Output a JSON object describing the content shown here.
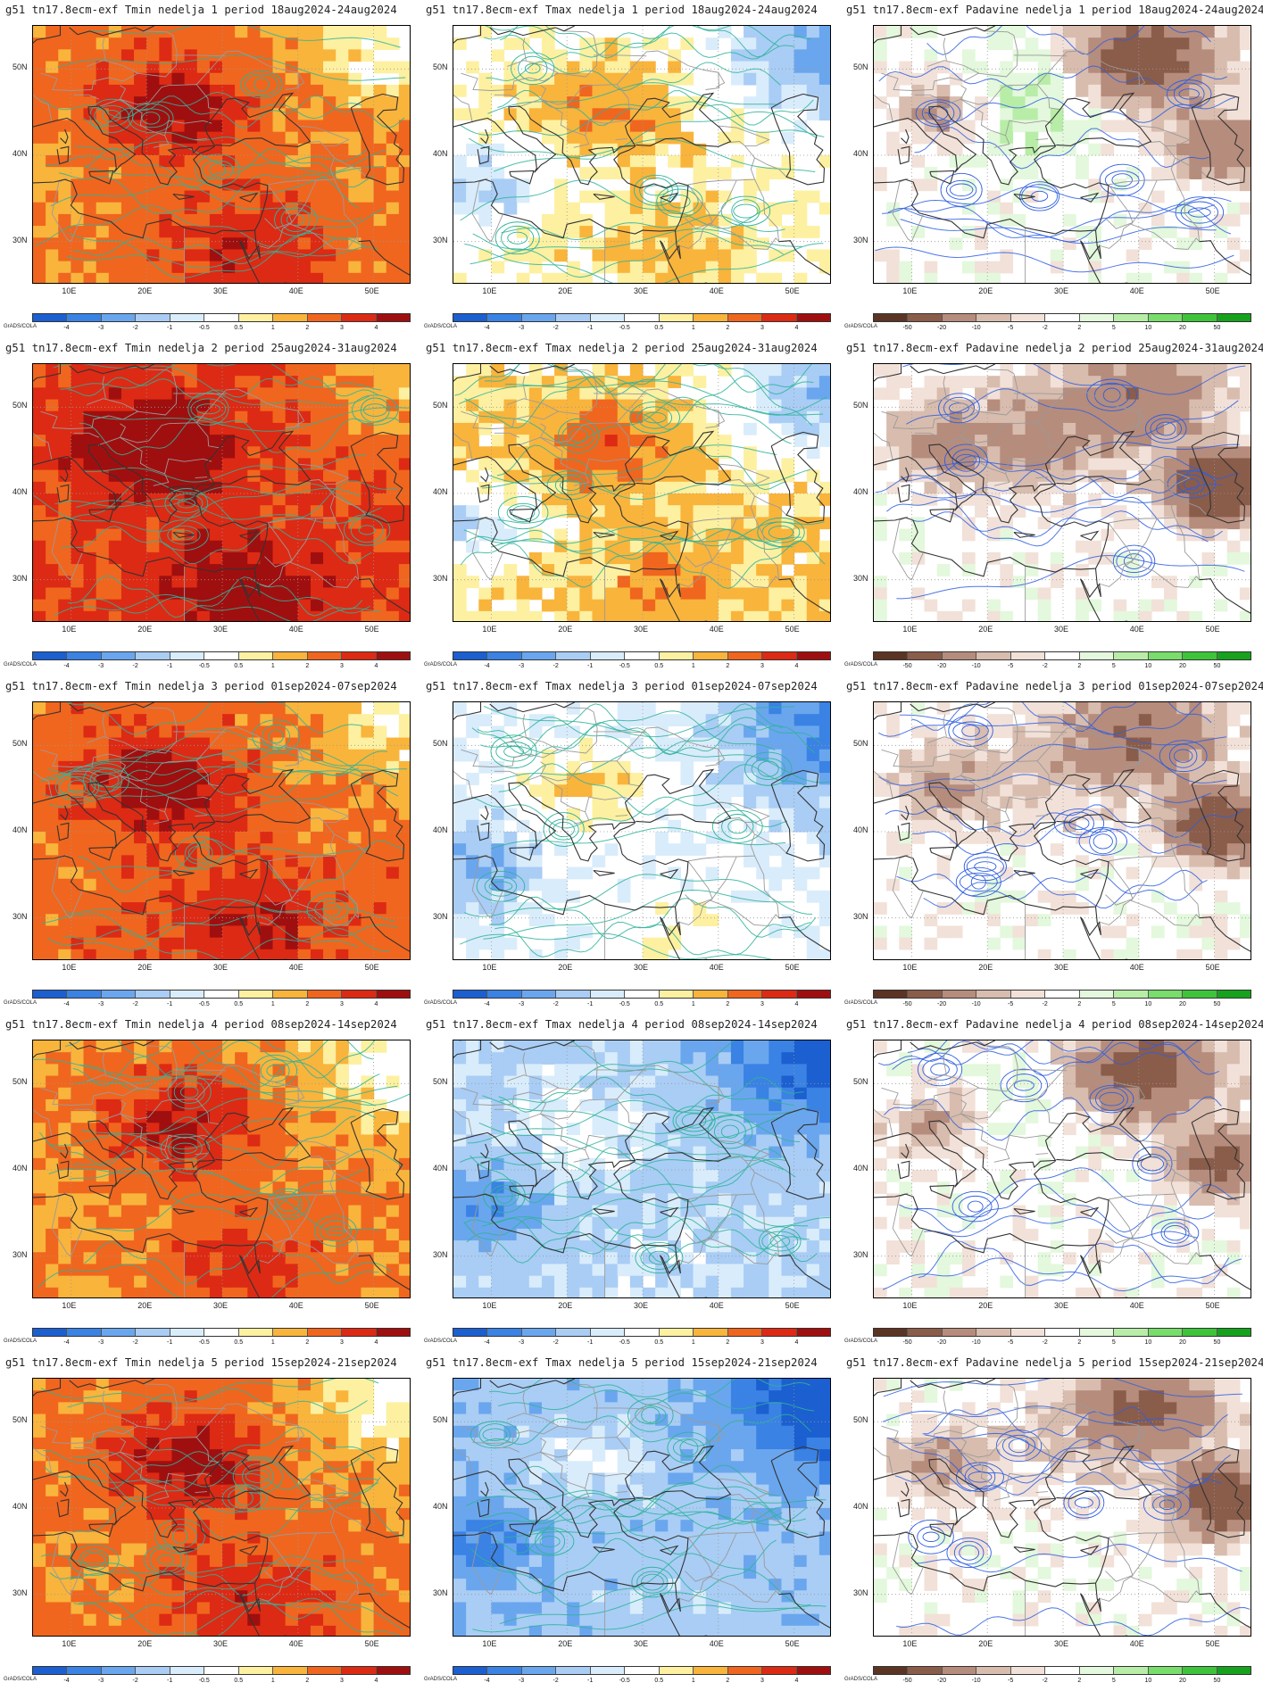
{
  "colorbars": {
    "temp": {
      "ticks": [
        "-4",
        "-3",
        "-2",
        "-1",
        "-0.5",
        "0.5",
        "1",
        "2",
        "3",
        "4"
      ],
      "colors": [
        "#1b5fd0",
        "#3a82e4",
        "#6aa6ee",
        "#a9cdf5",
        "#d9ecfb",
        "#ffffff",
        "#fdf0a0",
        "#f9b43c",
        "#f0661e",
        "#dd2a14",
        "#a00f0f"
      ]
    },
    "precip": {
      "ticks": [
        "-50",
        "-20",
        "-10",
        "-5",
        "-2",
        "2",
        "5",
        "10",
        "20",
        "50"
      ],
      "colors": [
        "#5b3424",
        "#8a5c4a",
        "#b68c7c",
        "#d8bcae",
        "#f2e1d8",
        "#ffffff",
        "#e3f8dc",
        "#b8eda8",
        "#78dd6a",
        "#3ec43a",
        "#16a21c"
      ]
    }
  },
  "axes": {
    "lat_labels": [
      "50N",
      "40N",
      "30N"
    ],
    "lon_labels": [
      "10E",
      "20E",
      "30E",
      "40E",
      "50E"
    ]
  },
  "credit": "GrADS/COLA",
  "panels": [
    {
      "title": "g51 tn17.8ecm-exf Tmin nedelja 1 period 18aug2024-24aug2024",
      "kind": "temp",
      "base": 0.55
    },
    {
      "title": "g51 tn17.8ecm-exf Tmax nedelja 1 period 18aug2024-24aug2024",
      "kind": "temp",
      "base": 0.1
    },
    {
      "title": "g51 tn17.8ecm-exf Padavine nedelja 1 period 18aug2024-24aug2024",
      "kind": "precip",
      "base": 0.1
    },
    {
      "title": "g51 tn17.8ecm-exf Tmin nedelja 2 period 25aug2024-31aug2024",
      "kind": "temp",
      "base": 0.75
    },
    {
      "title": "g51 tn17.8ecm-exf Tmax nedelja 2 period 25aug2024-31aug2024",
      "kind": "temp",
      "base": 0.2
    },
    {
      "title": "g51 tn17.8ecm-exf Padavine nedelja 2 period 25aug2024-31aug2024",
      "kind": "precip",
      "base": -0.2
    },
    {
      "title": "g51 tn17.8ecm-exf Tmin nedelja 3 period 01sep2024-07sep2024",
      "kind": "temp",
      "base": 0.6
    },
    {
      "title": "g51 tn17.8ecm-exf Tmax nedelja 3 period 01sep2024-07sep2024",
      "kind": "temp",
      "base": -0.1
    },
    {
      "title": "g51 tn17.8ecm-exf Padavine nedelja 3 period 01sep2024-07sep2024",
      "kind": "precip",
      "base": -0.1
    },
    {
      "title": "g51 tn17.8ecm-exf Tmin nedelja 4 period 08sep2024-14sep2024",
      "kind": "temp",
      "base": 0.5
    },
    {
      "title": "g51 tn17.8ecm-exf Tmax nedelja 4 period 08sep2024-14sep2024",
      "kind": "temp",
      "base": -0.3
    },
    {
      "title": "g51 tn17.8ecm-exf Padavine nedelja 4 period 08sep2024-14sep2024",
      "kind": "precip",
      "base": 0.05
    },
    {
      "title": "g51 tn17.8ecm-exf Tmin nedelja 5 period 15sep2024-21sep2024",
      "kind": "temp",
      "base": 0.55
    },
    {
      "title": "g51 tn17.8ecm-exf Tmax nedelja 5 period 15sep2024-21sep2024",
      "kind": "temp",
      "base": -0.4
    },
    {
      "title": "g51 tn17.8ecm-exf Padavine nedelja 5 period 15sep2024-21sep2024",
      "kind": "precip",
      "base": -0.05
    }
  ]
}
